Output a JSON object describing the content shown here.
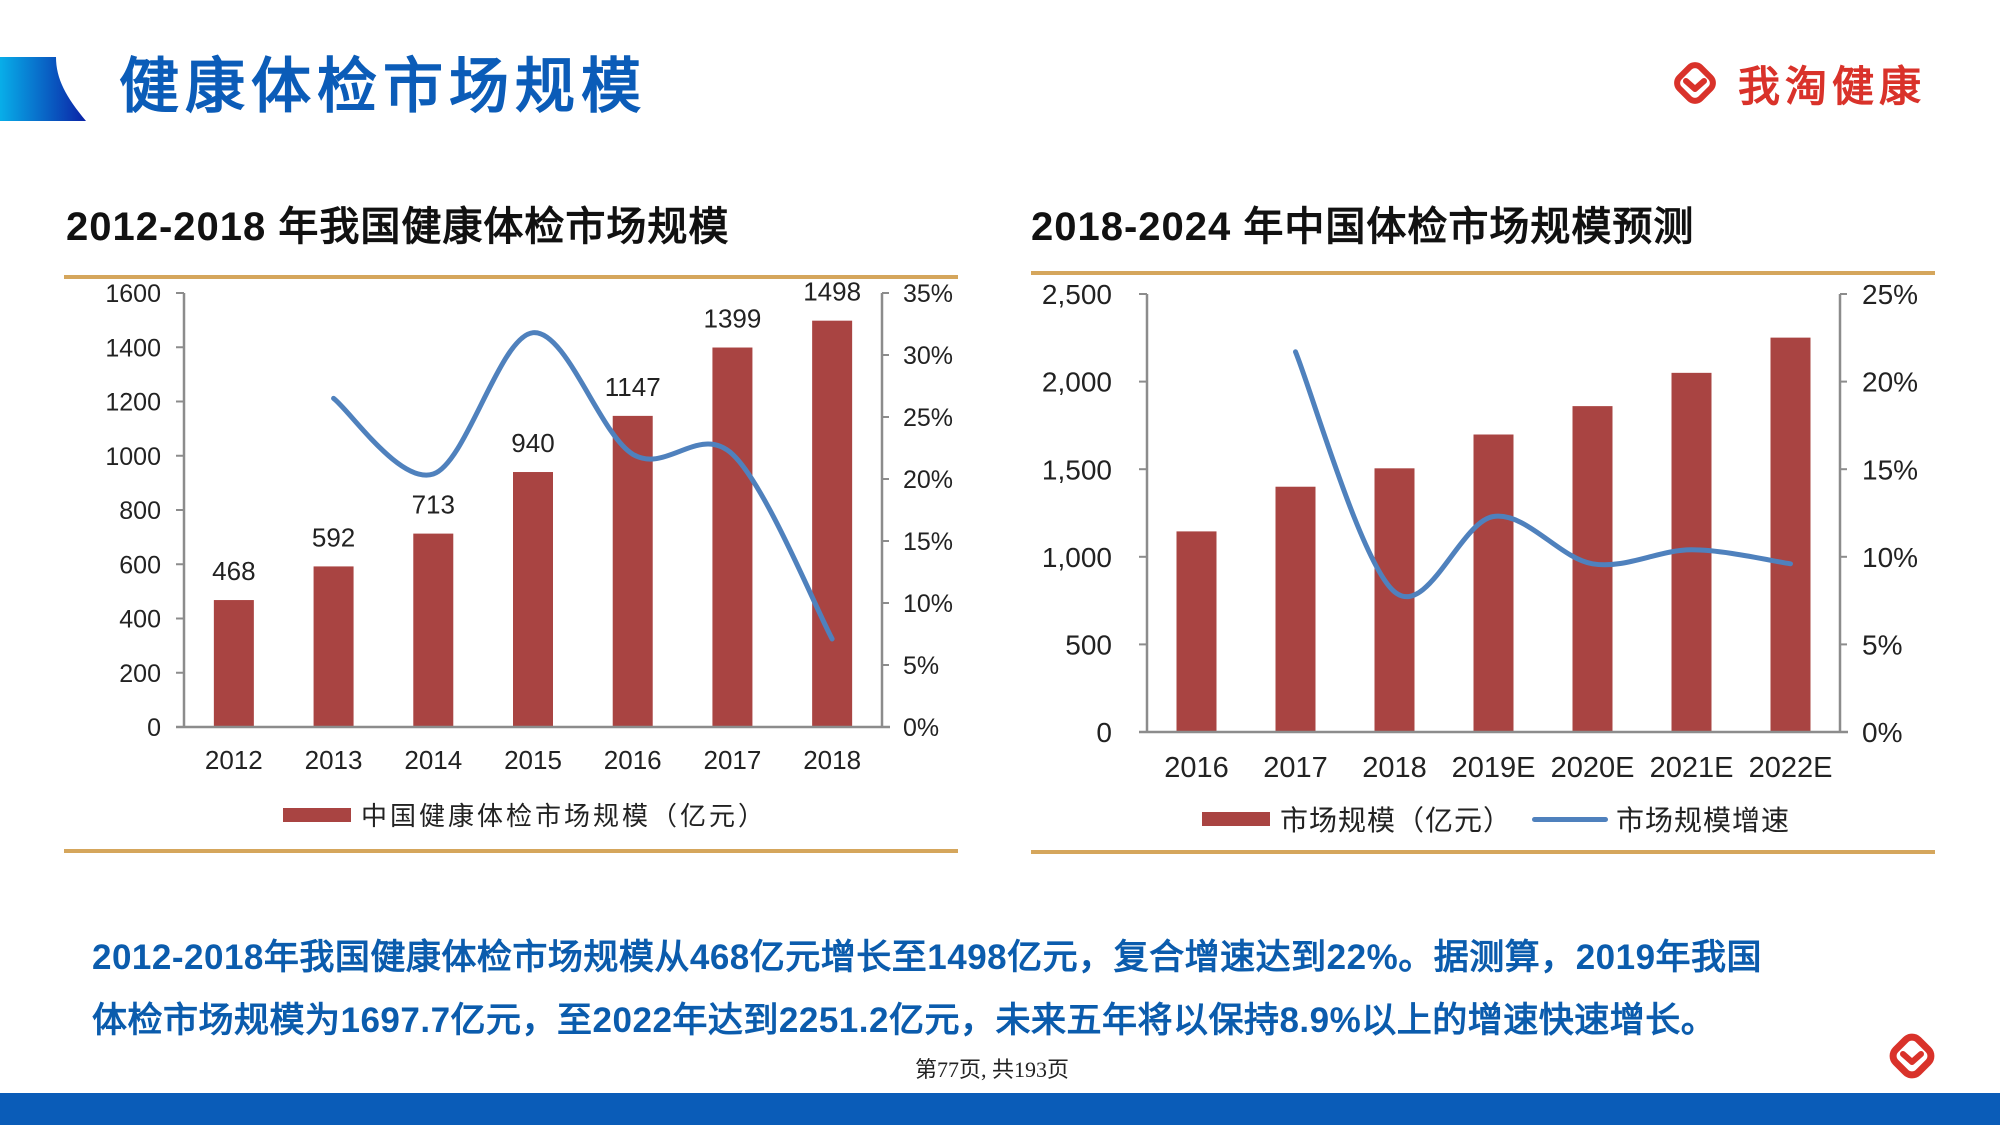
{
  "header": {
    "title": "健康体检市场规模",
    "brand_name": "我淘健康",
    "brand_icon": "diamond-chevron-logo-icon"
  },
  "colors": {
    "title_blue": "#0b5cb8",
    "text_blue": "#0b5cad",
    "brand_red": "#d9322a",
    "bar_red": "#a94442",
    "line_blue": "#4f81bd",
    "rule_gold": "#d5a65c",
    "footer_blue": "#0a5cb8"
  },
  "chart_data": [
    {
      "type": "bar+line",
      "title": "2012-2018 年我国健康体检市场规模",
      "categories": [
        "2012",
        "2013",
        "2014",
        "2015",
        "2016",
        "2017",
        "2018"
      ],
      "series": [
        {
          "name": "中国健康体检市场规模（亿元）",
          "type": "bar",
          "axis": "left",
          "values": [
            468,
            592,
            713,
            940,
            1147,
            1399,
            1498
          ],
          "data_labels_shown": true
        },
        {
          "name": "",
          "type": "line",
          "axis": "right",
          "unit": "%",
          "smooth": true,
          "in_legend": false,
          "values": [
            null,
            26.5,
            20.4,
            31.8,
            22.0,
            22.0,
            7.1
          ]
        }
      ],
      "y_left": {
        "min": 0,
        "max": 1600,
        "ticks": [
          {
            "value": 0,
            "label": "0"
          },
          {
            "value": 200,
            "label": "200"
          },
          {
            "value": 400,
            "label": "400"
          },
          {
            "value": 600,
            "label": "600"
          },
          {
            "value": 800,
            "label": "800"
          },
          {
            "value": 1000,
            "label": "1000"
          },
          {
            "value": 1200,
            "label": "1200"
          },
          {
            "value": 1400,
            "label": "1400"
          },
          {
            "value": 1600,
            "label": "1600"
          }
        ]
      },
      "y_right": {
        "min": 0,
        "max": 35,
        "ticks": [
          {
            "value": 0,
            "label": "0%"
          },
          {
            "value": 5,
            "label": "5%"
          },
          {
            "value": 10,
            "label": "10%"
          },
          {
            "value": 15,
            "label": "15%"
          },
          {
            "value": 20,
            "label": "20%"
          },
          {
            "value": 25,
            "label": "25%"
          },
          {
            "value": 30,
            "label": "30%"
          },
          {
            "value": 35,
            "label": "35%"
          }
        ]
      },
      "xlabel": "",
      "ylabel": "",
      "grid": false,
      "legend_position": "bottom",
      "legend": [
        {
          "label": "中国健康体检市场规模（亿元）",
          "swatch": "bar"
        }
      ]
    },
    {
      "type": "bar+line",
      "title": "2018-2024 年中国体检市场规模预测",
      "categories": [
        "2016",
        "2017",
        "2018",
        "2019E",
        "2020E",
        "2021E",
        "2022E"
      ],
      "series": [
        {
          "name": "市场规模（亿元）",
          "type": "bar",
          "axis": "left",
          "values": [
            1145,
            1400,
            1505,
            1698,
            1860,
            2050,
            2251
          ],
          "data_labels_shown": false
        },
        {
          "name": "市场规模增速",
          "type": "line",
          "axis": "right",
          "unit": "%",
          "smooth": true,
          "in_legend": true,
          "values": [
            null,
            21.7,
            8.0,
            12.3,
            9.6,
            10.4,
            9.6
          ]
        }
      ],
      "y_left": {
        "min": 0,
        "max": 2500,
        "ticks": [
          {
            "value": 0,
            "label": "0"
          },
          {
            "value": 500,
            "label": "500"
          },
          {
            "value": 1000,
            "label": "1,000"
          },
          {
            "value": 1500,
            "label": "1,500"
          },
          {
            "value": 2000,
            "label": "2,000"
          },
          {
            "value": 2500,
            "label": "2,500"
          }
        ]
      },
      "y_right": {
        "min": 0,
        "max": 25,
        "ticks": [
          {
            "value": 0,
            "label": "0%"
          },
          {
            "value": 5,
            "label": "5%"
          },
          {
            "value": 10,
            "label": "10%"
          },
          {
            "value": 15,
            "label": "15%"
          },
          {
            "value": 20,
            "label": "20%"
          },
          {
            "value": 25,
            "label": "25%"
          }
        ]
      },
      "xlabel": "",
      "ylabel": "",
      "grid": false,
      "legend_position": "bottom",
      "legend": [
        {
          "label": "市场规模（亿元）",
          "swatch": "bar"
        },
        {
          "label": "市场规模增速",
          "swatch": "line"
        }
      ]
    }
  ],
  "summary": {
    "lines": [
      "2012-2018年我国健康体检市场规模从468亿元增长至1498亿元，复合增速达到22%。据测算，2019年我国",
      "体检市场规模为1697.7亿元，至2022年达到2251.2亿元，未来五年将以保持8.9%以上的增速快速增长。"
    ]
  },
  "footer": {
    "page_indicator": "第77页, 共193页"
  }
}
